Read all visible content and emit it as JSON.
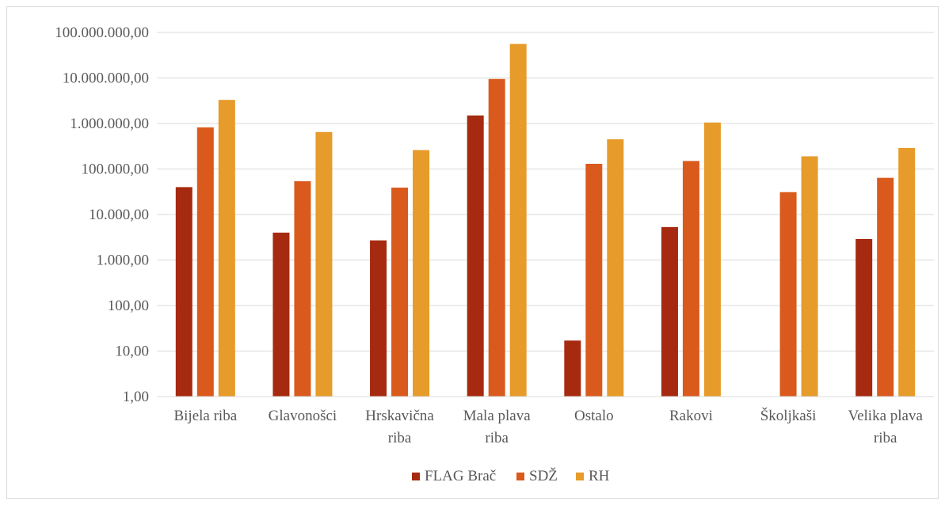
{
  "chart_data": {
    "type": "bar",
    "yscale": "log",
    "ylim": [
      1,
      100000000
    ],
    "ytick_values": [
      1,
      10,
      100,
      1000,
      10000,
      100000,
      1000000,
      10000000,
      100000000
    ],
    "ytick_labels": [
      "1,00",
      "10,00",
      "100,00",
      "1.000,00",
      "10.000,00",
      "100.000,00",
      "1.000.000,00",
      "10.000.000,00",
      "100.000.000,00"
    ],
    "categories": [
      [
        "Bijela riba"
      ],
      [
        "Glavonošci"
      ],
      [
        "Hrskavična",
        "riba"
      ],
      [
        "Mala plava",
        "riba"
      ],
      [
        "Ostalo"
      ],
      [
        "Rakovi"
      ],
      [
        "Školjkaši"
      ],
      [
        "Velika plava",
        "riba"
      ]
    ],
    "series": [
      {
        "name": "FLAG Brač",
        "color": "#a52a0f",
        "values": [
          40000,
          4000,
          2700,
          1500000,
          17,
          5300,
          null,
          2900
        ]
      },
      {
        "name": "SDŽ",
        "color": "#d95a1c",
        "values": [
          820000,
          54000,
          39000,
          9500000,
          130000,
          150000,
          31000,
          64000
        ]
      },
      {
        "name": "RH",
        "color": "#e69b2a",
        "values": [
          3300000,
          650000,
          260000,
          56000000,
          450000,
          1050000,
          190000,
          290000
        ]
      }
    ],
    "grid": true,
    "legend_position": "bottom"
  }
}
